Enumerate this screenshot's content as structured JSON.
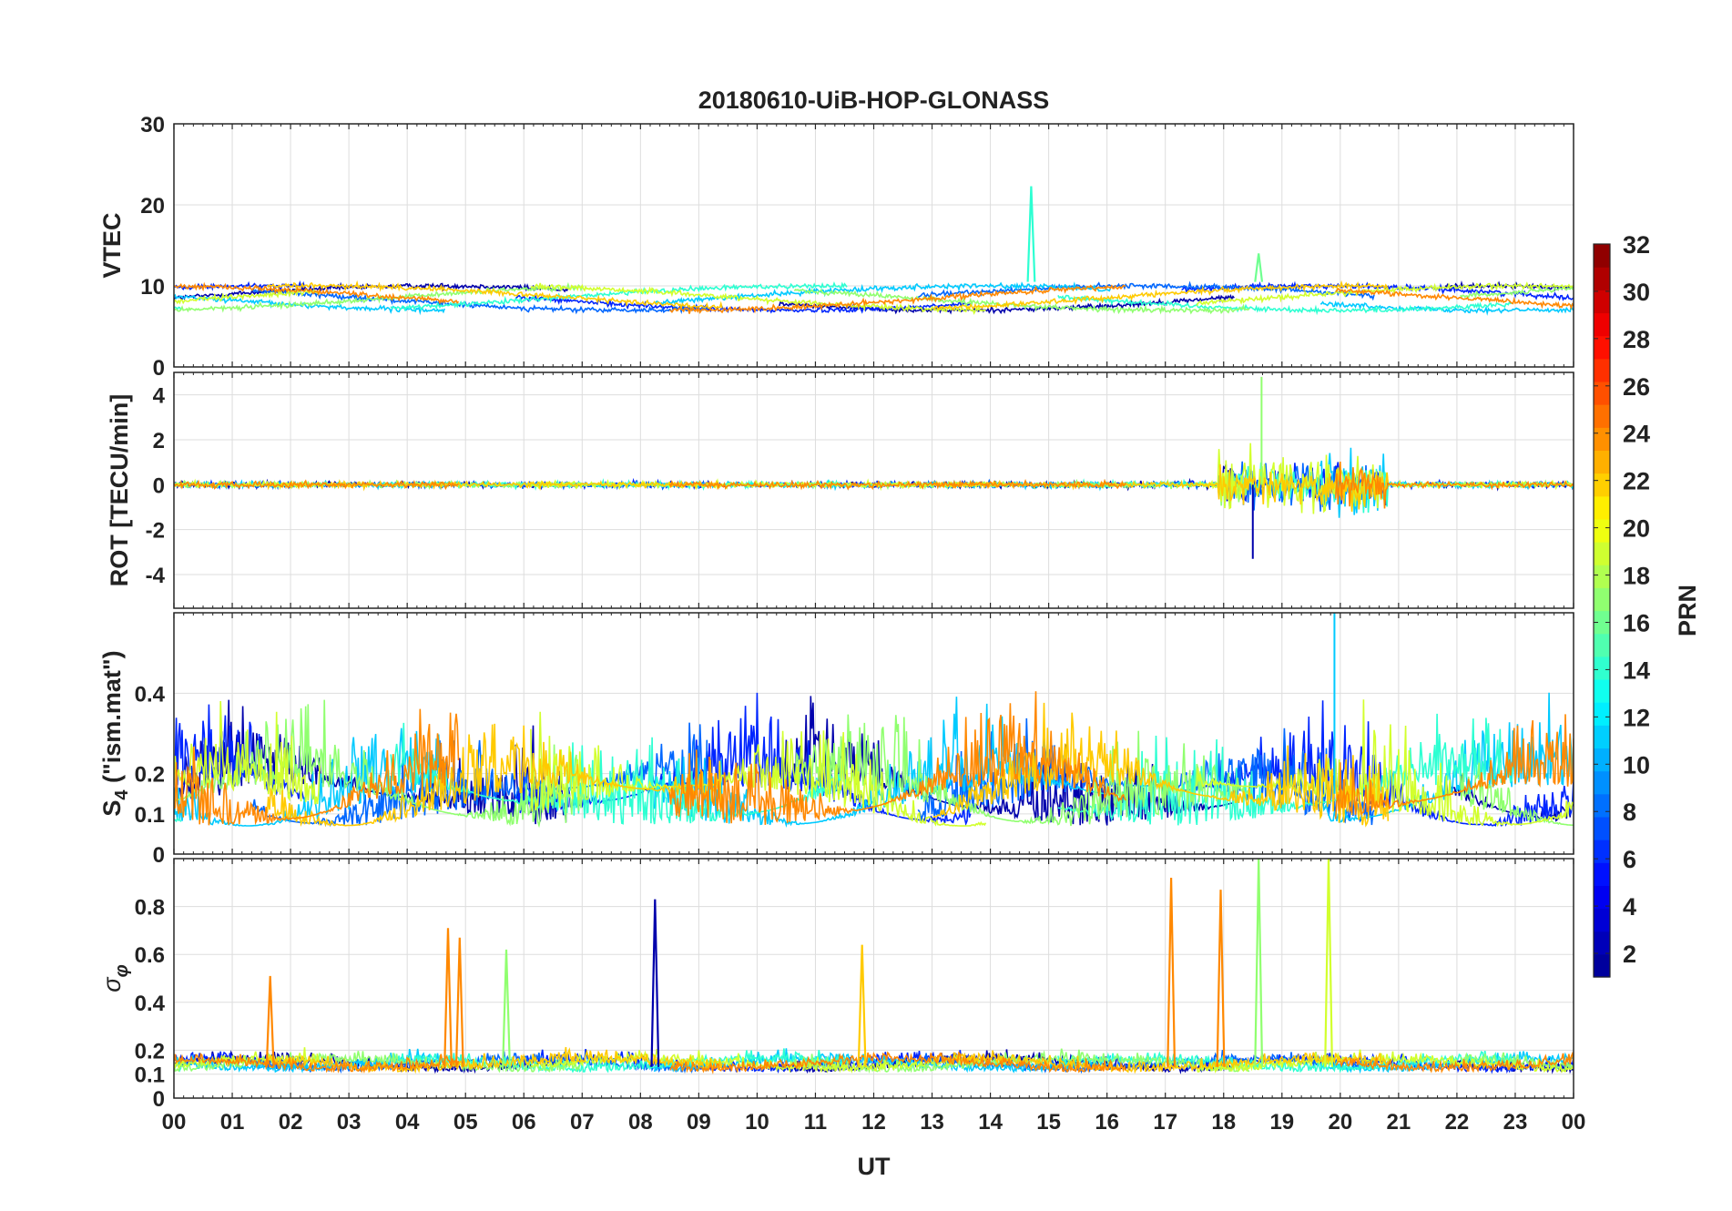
{
  "chart_data": {
    "type": "line",
    "title": "20180610-UiB-HOP-GLONASS",
    "xlabel": "UT",
    "xlim": [
      0,
      24
    ],
    "x_tick_labels": [
      "00",
      "01",
      "02",
      "03",
      "04",
      "05",
      "06",
      "07",
      "08",
      "09",
      "10",
      "11",
      "12",
      "13",
      "14",
      "15",
      "16",
      "17",
      "18",
      "19",
      "20",
      "21",
      "22",
      "23",
      "00"
    ],
    "grid": true,
    "colorbar": {
      "label": "PRN",
      "range": [
        1,
        32
      ],
      "tick_labels": [
        "2",
        "4",
        "6",
        "8",
        "10",
        "12",
        "14",
        "16",
        "18",
        "20",
        "22",
        "24",
        "26",
        "28",
        "30",
        "32"
      ],
      "colormap_stops": [
        "#00008f",
        "#0000ff",
        "#0080ff",
        "#00ffff",
        "#80ff80",
        "#ffff00",
        "#ff8000",
        "#ff0000",
        "#800000"
      ]
    },
    "series_prns": [
      2,
      6,
      8,
      11,
      14,
      17,
      19,
      22,
      24
    ],
    "panels": [
      {
        "id": "vtec",
        "ylabel": "VTEC",
        "ylim": [
          0,
          30
        ],
        "y_tick_labels": [
          "0",
          "10",
          "20",
          "30"
        ],
        "typical_level": 8.5,
        "spikes": [
          {
            "prn": 14,
            "time": 14.7,
            "value": 22.3
          },
          {
            "prn": 16,
            "time": 18.6,
            "value": 14.0
          }
        ]
      },
      {
        "id": "rot",
        "ylabel": "ROT [TECU/min]",
        "ylim": [
          -5.5,
          5
        ],
        "y_tick_labels": [
          "-4",
          "-2",
          "0",
          "2",
          "4"
        ],
        "disturbed_interval": [
          17.9,
          20.8
        ],
        "disturbed_peak": 4.8,
        "disturbed_trough": -3.3
      },
      {
        "id": "s4",
        "ylabel": "S",
        "ylabel_subscript": "4",
        "ylabel_suffix": " (\"ism.mat\")",
        "ylim": [
          0,
          0.6
        ],
        "y_tick_labels": [
          "0",
          "0.1",
          "0.2",
          "0.4"
        ],
        "typical_level": 0.12,
        "max_value": 0.6
      },
      {
        "id": "sigma_phi",
        "ylabel": "σ",
        "ylabel_subscript": "φ",
        "ylim": [
          0,
          1
        ],
        "y_tick_labels": [
          "0",
          "0.1",
          "0.2",
          "0.4",
          "0.6",
          "0.8"
        ],
        "typical_level": 0.13,
        "spikes": [
          {
            "prn": 24,
            "time": 1.65,
            "value": 0.51
          },
          {
            "prn": 24,
            "time": 4.7,
            "value": 0.71
          },
          {
            "prn": 24,
            "time": 4.9,
            "value": 0.67
          },
          {
            "prn": 17,
            "time": 5.7,
            "value": 0.62
          },
          {
            "prn": 2,
            "time": 8.25,
            "value": 0.83
          },
          {
            "prn": 22,
            "time": 11.8,
            "value": 0.64
          },
          {
            "prn": 24,
            "time": 17.1,
            "value": 0.92
          },
          {
            "prn": 24,
            "time": 17.95,
            "value": 0.87
          },
          {
            "prn": 17,
            "time": 18.6,
            "value": 1.0
          },
          {
            "prn": 19,
            "time": 19.8,
            "value": 1.0
          }
        ]
      }
    ]
  }
}
